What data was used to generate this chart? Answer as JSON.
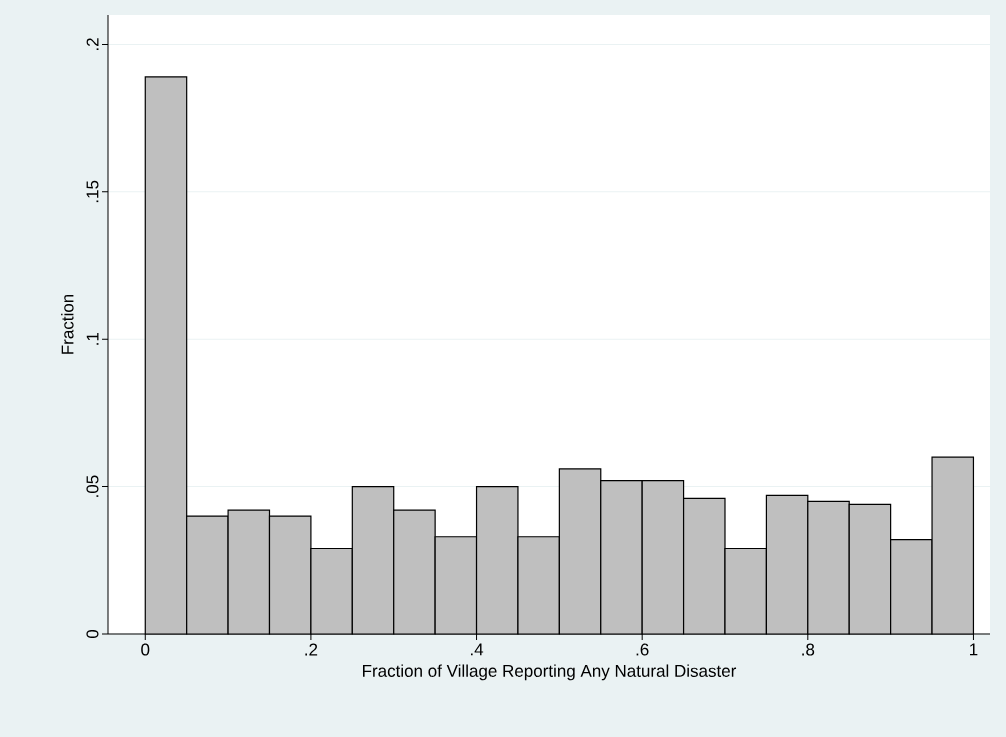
{
  "chart_data": {
    "type": "histogram",
    "xlabel": "Fraction of Village Reporting Any Natural Disaster",
    "ylabel": "Fraction",
    "bins": [
      0,
      0.05,
      0.1,
      0.15,
      0.2,
      0.25,
      0.3,
      0.35,
      0.4,
      0.45,
      0.5,
      0.55,
      0.6,
      0.65,
      0.7,
      0.75,
      0.8,
      0.85,
      0.9,
      0.95,
      1
    ],
    "values": [
      0.189,
      0.04,
      0.042,
      0.04,
      0.029,
      0.05,
      0.042,
      0.033,
      0.05,
      0.033,
      0.056,
      0.052,
      0.052,
      0.046,
      0.029,
      0.047,
      0.045,
      0.044,
      0.032,
      0.06
    ],
    "color": "#bfbfbf",
    "xlim": [
      -0.045,
      1.02
    ],
    "ylim": [
      0,
      0.21
    ],
    "xticks": [
      0,
      {
        "value": 0.2,
        "label": ".2"
      },
      {
        "value": 0.4,
        "label": ".4"
      },
      {
        "value": 0.6,
        "label": ".6"
      },
      {
        "value": 0.8,
        "label": ".8"
      },
      1
    ],
    "yticks": [
      0,
      {
        "value": 0.05,
        "label": ".05"
      },
      {
        "value": 0.1,
        "label": ".1"
      },
      {
        "value": 0.15,
        "label": ".15"
      },
      {
        "value": 0.2,
        "label": ".2"
      }
    ],
    "grid": "y"
  }
}
